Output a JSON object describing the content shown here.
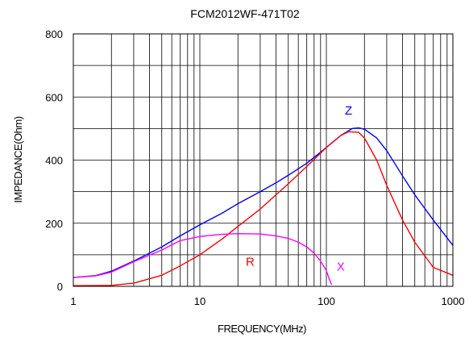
{
  "chart_data": {
    "type": "line",
    "title": "FCM2012WF-471T02",
    "xlabel": "FREQUENCY(MHz)",
    "ylabel": "IMPEDANCE(Ohm)",
    "x_scale": "log",
    "xlim": [
      1,
      1000
    ],
    "ylim": [
      0,
      800
    ],
    "x_ticks": [
      "1",
      "10",
      "100",
      "1000"
    ],
    "y_ticks": [
      "0",
      "200",
      "400",
      "600",
      "800"
    ],
    "grid": true,
    "series": [
      {
        "name": "Z",
        "color": "#0000ff",
        "points": [
          [
            1,
            28
          ],
          [
            1.5,
            34
          ],
          [
            2,
            48
          ],
          [
            3,
            80
          ],
          [
            5,
            125
          ],
          [
            7,
            160
          ],
          [
            10,
            195
          ],
          [
            15,
            232
          ],
          [
            20,
            262
          ],
          [
            30,
            300
          ],
          [
            40,
            328
          ],
          [
            50,
            352
          ],
          [
            70,
            390
          ],
          [
            100,
            440
          ],
          [
            130,
            478
          ],
          [
            160,
            500
          ],
          [
            180,
            502
          ],
          [
            200,
            498
          ],
          [
            250,
            470
          ],
          [
            300,
            430
          ],
          [
            400,
            350
          ],
          [
            500,
            290
          ],
          [
            700,
            210
          ],
          [
            1000,
            130
          ]
        ]
      },
      {
        "name": "R",
        "color": "#ff0000",
        "points": [
          [
            1,
            2
          ],
          [
            2,
            3
          ],
          [
            3,
            10
          ],
          [
            5,
            35
          ],
          [
            7,
            65
          ],
          [
            10,
            100
          ],
          [
            15,
            150
          ],
          [
            20,
            190
          ],
          [
            30,
            245
          ],
          [
            40,
            290
          ],
          [
            50,
            325
          ],
          [
            70,
            380
          ],
          [
            100,
            440
          ],
          [
            130,
            478
          ],
          [
            150,
            490
          ],
          [
            180,
            488
          ],
          [
            200,
            470
          ],
          [
            250,
            400
          ],
          [
            300,
            320
          ],
          [
            400,
            210
          ],
          [
            500,
            140
          ],
          [
            700,
            60
          ],
          [
            1000,
            35
          ]
        ]
      },
      {
        "name": "X",
        "color": "#ff00ff",
        "points": [
          [
            1,
            28
          ],
          [
            1.5,
            33
          ],
          [
            2,
            45
          ],
          [
            3,
            78
          ],
          [
            5,
            115
          ],
          [
            7,
            145
          ],
          [
            10,
            158
          ],
          [
            15,
            165
          ],
          [
            20,
            167
          ],
          [
            30,
            166
          ],
          [
            40,
            160
          ],
          [
            50,
            152
          ],
          [
            60,
            140
          ],
          [
            70,
            125
          ],
          [
            80,
            105
          ],
          [
            90,
            80
          ],
          [
            100,
            50
          ],
          [
            105,
            25
          ],
          [
            110,
            5
          ]
        ]
      }
    ],
    "series_labels": [
      {
        "text": "Z",
        "at": [
          150,
          545
        ]
      },
      {
        "text": "R",
        "at": [
          25,
          65
        ]
      },
      {
        "text": "X",
        "at": [
          130,
          50
        ]
      }
    ]
  }
}
